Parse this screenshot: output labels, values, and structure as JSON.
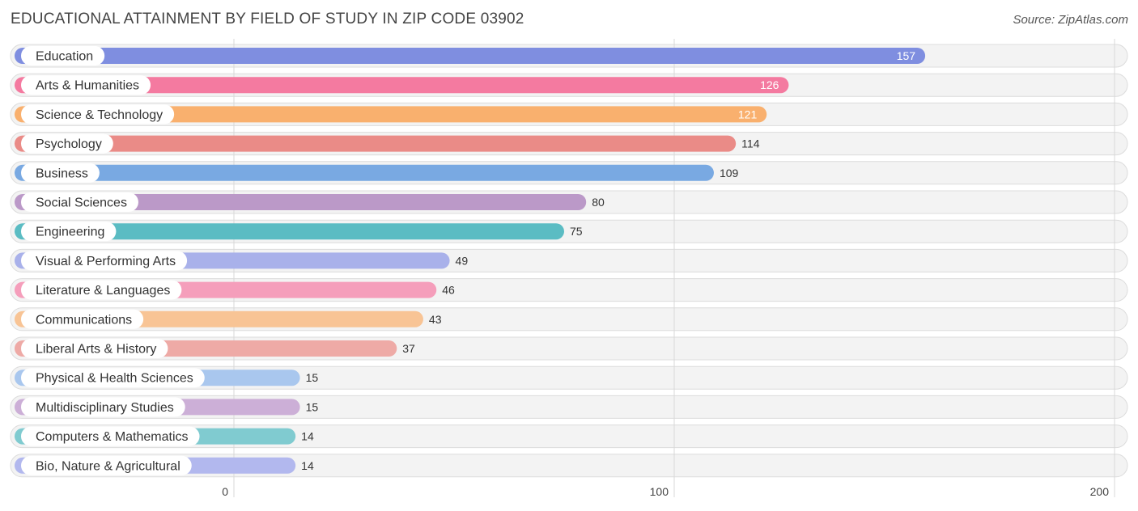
{
  "header": {
    "title": "EDUCATIONAL ATTAINMENT BY FIELD OF STUDY IN ZIP CODE 03902",
    "source": "Source: ZipAtlas.com"
  },
  "chart_data": {
    "type": "bar",
    "orientation": "horizontal",
    "title": "EDUCATIONAL ATTAINMENT BY FIELD OF STUDY IN ZIP CODE 03902",
    "categories": [
      "Education",
      "Arts & Humanities",
      "Science & Technology",
      "Psychology",
      "Business",
      "Social Sciences",
      "Engineering",
      "Visual & Performing Arts",
      "Literature & Languages",
      "Communications",
      "Liberal Arts & History",
      "Physical & Health Sciences",
      "Multidisciplinary Studies",
      "Computers & Mathematics",
      "Bio, Nature & Agricultural"
    ],
    "values": [
      157,
      126,
      121,
      114,
      109,
      80,
      75,
      49,
      46,
      43,
      37,
      15,
      15,
      14,
      14
    ],
    "colors": [
      "#7f8ee0",
      "#f47aa0",
      "#f9b06e",
      "#ea8b87",
      "#79a9e2",
      "#bb99c8",
      "#5bbcc3",
      "#a9b1ea",
      "#f59ebb",
      "#f8c495",
      "#eeaaa6",
      "#a9c7ee",
      "#ccafd7",
      "#80cbd0",
      "#b2b8ee"
    ],
    "xlim": [
      0,
      200
    ],
    "xticks": [
      0,
      100,
      200
    ],
    "xtick_labels": [
      "0",
      "100",
      "200"
    ],
    "xlabel": "",
    "ylabel": "",
    "grid": true,
    "legend": "none"
  }
}
